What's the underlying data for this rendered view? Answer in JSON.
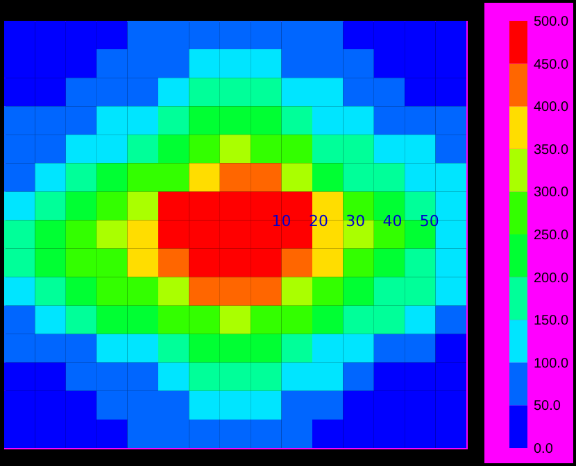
{
  "chart_data": {
    "type": "heatmap",
    "categories": [
      null,
      null,
      null,
      null,
      null,
      null,
      null,
      null,
      null,
      null,
      null,
      null,
      null,
      null,
      null
    ],
    "y_categories": [
      null,
      null,
      null,
      null,
      null,
      null,
      null,
      null,
      null,
      null,
      null,
      null,
      null,
      null,
      null
    ],
    "cells": [
      [
        25,
        25,
        25,
        25,
        75,
        75,
        75,
        75,
        75,
        75,
        75,
        25,
        25,
        25,
        25
      ],
      [
        25,
        25,
        25,
        75,
        75,
        75,
        125,
        125,
        125,
        75,
        75,
        75,
        25,
        25,
        25
      ],
      [
        25,
        25,
        75,
        75,
        75,
        125,
        175,
        175,
        175,
        125,
        125,
        75,
        75,
        25,
        25
      ],
      [
        75,
        75,
        75,
        125,
        125,
        175,
        225,
        225,
        225,
        175,
        125,
        125,
        75,
        75,
        75
      ],
      [
        75,
        75,
        125,
        125,
        175,
        225,
        275,
        325,
        275,
        275,
        175,
        175,
        125,
        125,
        75
      ],
      [
        75,
        125,
        175,
        225,
        275,
        275,
        375,
        425,
        425,
        325,
        225,
        175,
        175,
        125,
        125
      ],
      [
        125,
        175,
        225,
        275,
        325,
        475,
        475,
        475,
        475,
        475,
        375,
        275,
        225,
        175,
        125
      ],
      [
        175,
        225,
        275,
        325,
        375,
        475,
        475,
        475,
        475,
        475,
        375,
        325,
        275,
        225,
        125
      ],
      [
        175,
        225,
        275,
        275,
        375,
        425,
        475,
        475,
        475,
        425,
        375,
        275,
        225,
        175,
        125
      ],
      [
        125,
        175,
        225,
        275,
        275,
        325,
        425,
        425,
        425,
        325,
        275,
        225,
        175,
        175,
        125
      ],
      [
        75,
        125,
        175,
        225,
        225,
        275,
        275,
        325,
        275,
        275,
        225,
        175,
        175,
        125,
        75
      ],
      [
        75,
        75,
        75,
        125,
        125,
        175,
        225,
        225,
        225,
        175,
        125,
        125,
        75,
        75,
        25
      ],
      [
        25,
        25,
        75,
        75,
        75,
        125,
        175,
        175,
        175,
        125,
        125,
        75,
        25,
        25,
        25
      ],
      [
        25,
        25,
        25,
        75,
        75,
        75,
        125,
        125,
        125,
        75,
        75,
        25,
        25,
        25,
        25
      ],
      [
        25,
        25,
        25,
        25,
        75,
        75,
        75,
        75,
        75,
        75,
        25,
        25,
        25,
        25,
        25
      ]
    ],
    "clim": [
      0,
      500
    ],
    "cticks": [
      {
        "value": 0,
        "label": "0.0"
      },
      {
        "value": 50,
        "label": "50.0"
      },
      {
        "value": 100,
        "label": "100.0"
      },
      {
        "value": 150,
        "label": "150.0"
      },
      {
        "value": 200,
        "label": "200.0"
      },
      {
        "value": 250,
        "label": "250.0"
      },
      {
        "value": 300,
        "label": "300.0"
      },
      {
        "value": 350,
        "label": "350.0"
      },
      {
        "value": 400,
        "label": "400.0"
      },
      {
        "value": 450,
        "label": "450.0"
      },
      {
        "value": 500,
        "label": "500.0"
      }
    ],
    "colors": [
      "#0000ff",
      "#0066ff",
      "#00e5ff",
      "#00ff99",
      "#00ff33",
      "#33ff00",
      "#aaff00",
      "#ffdd00",
      "#ff6600",
      "#ff0000"
    ],
    "annotations": [
      "10",
      "20",
      "30",
      "40",
      "50"
    ],
    "tick_labels": false
  }
}
